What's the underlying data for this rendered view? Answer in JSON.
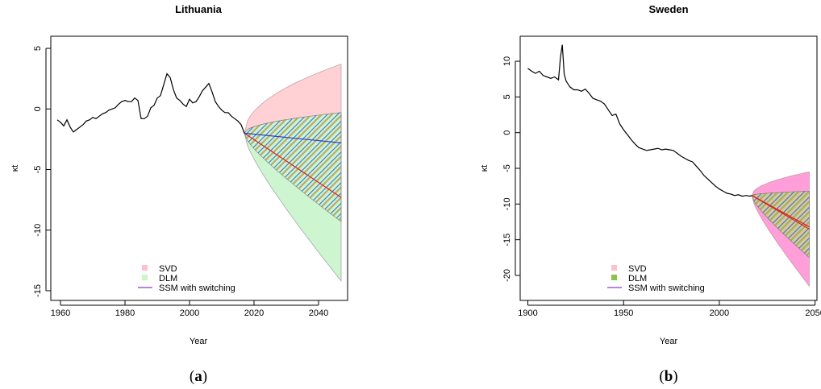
{
  "chart_data": [
    {
      "type": "line",
      "title": "Lithuania",
      "xlabel": "Year",
      "ylabel": "κt",
      "panel_label": "a",
      "xlim": [
        1957,
        2049
      ],
      "ylim": [
        -15.8,
        6.0
      ],
      "xticks": [
        1960,
        1980,
        2000,
        2020,
        2040
      ],
      "yticks": [
        5,
        0,
        -5,
        -10,
        -15
      ],
      "legend": {
        "position": "bottom",
        "entries": [
          {
            "label": "SVD",
            "color": "#ffc0cb",
            "kind": "box"
          },
          {
            "label": "DLM",
            "color": "#c8f7c8",
            "kind": "box"
          },
          {
            "label": "SSM with switching",
            "color": "#9c5fd8",
            "kind": "line"
          }
        ]
      },
      "historical": {
        "x": [
          1959,
          1960,
          1961,
          1962,
          1963,
          1964,
          1965,
          1966,
          1967,
          1968,
          1969,
          1970,
          1971,
          1972,
          1973,
          1974,
          1975,
          1976,
          1977,
          1978,
          1979,
          1980,
          1981,
          1982,
          1983,
          1984,
          1985,
          1986,
          1987,
          1988,
          1989,
          1990,
          1991,
          1992,
          1993,
          1994,
          1995,
          1996,
          1997,
          1998,
          1999,
          2000,
          2001,
          2002,
          2003,
          2004,
          2005,
          2006,
          2007,
          2008,
          2009,
          2010,
          2011,
          2012,
          2013,
          2014,
          2015,
          2016,
          2017
        ],
        "y": [
          -0.9,
          -1.1,
          -1.4,
          -0.9,
          -1.5,
          -1.9,
          -1.7,
          -1.5,
          -1.3,
          -1.0,
          -0.9,
          -0.7,
          -0.8,
          -0.6,
          -0.4,
          -0.3,
          -0.1,
          0.0,
          0.1,
          0.4,
          0.6,
          0.7,
          0.6,
          0.6,
          0.9,
          0.7,
          -0.8,
          -0.8,
          -0.6,
          0.1,
          0.3,
          0.9,
          1.1,
          2.0,
          2.9,
          2.6,
          1.6,
          0.9,
          0.7,
          0.4,
          0.2,
          0.8,
          0.5,
          0.6,
          1.0,
          1.5,
          1.8,
          2.1,
          1.4,
          0.6,
          0.2,
          -0.1,
          -0.3,
          -0.3,
          -0.6,
          -0.8,
          -1.0,
          -1.3,
          -2.0
        ]
      },
      "forecast_start": 2017,
      "forecast_end": 2047,
      "svd_band": {
        "upper": 3.7,
        "lower": -9.3
      },
      "dlm_band": {
        "upper": -0.3,
        "lower": -14.2
      },
      "dlm_central_end": -7.3,
      "ssm_central_end": -2.8,
      "forecast_start_value": -2.0
    },
    {
      "type": "line",
      "title": "Sweden",
      "xlabel": "Year",
      "ylabel": "κt",
      "panel_label": "b",
      "xlim": [
        1896,
        2051
      ],
      "ylim": [
        -23.5,
        13.5
      ],
      "xticks": [
        1900,
        1950,
        2000,
        2050
      ],
      "yticks": [
        10,
        5,
        0,
        -5,
        -10,
        -15,
        -20
      ],
      "legend": {
        "position": "bottom",
        "entries": [
          {
            "label": "SVD",
            "color": "#ffc0cb",
            "kind": "box"
          },
          {
            "label": "DLM",
            "color": "#8bc34a",
            "kind": "box"
          },
          {
            "label": "SSM with switching",
            "color": "#9c5fd8",
            "kind": "line"
          }
        ]
      },
      "historical": {
        "x": [
          1900,
          1902,
          1904,
          1906,
          1908,
          1910,
          1912,
          1914,
          1916,
          1917,
          1918,
          1919,
          1920,
          1922,
          1924,
          1926,
          1928,
          1930,
          1932,
          1934,
          1936,
          1938,
          1940,
          1942,
          1944,
          1946,
          1948,
          1950,
          1952,
          1954,
          1956,
          1958,
          1960,
          1962,
          1964,
          1966,
          1968,
          1970,
          1972,
          1974,
          1976,
          1978,
          1980,
          1982,
          1984,
          1986,
          1988,
          1990,
          1992,
          1994,
          1996,
          1998,
          2000,
          2002,
          2004,
          2006,
          2008,
          2010,
          2012,
          2014,
          2016,
          2017
        ],
        "y": [
          9.0,
          8.6,
          8.3,
          8.6,
          8.0,
          7.8,
          7.6,
          7.8,
          7.4,
          10.5,
          12.3,
          8.2,
          7.2,
          6.4,
          6.0,
          6.0,
          5.8,
          6.1,
          5.5,
          4.8,
          4.6,
          4.4,
          4.0,
          3.2,
          2.4,
          2.6,
          1.2,
          0.4,
          -0.3,
          -1.0,
          -1.6,
          -2.1,
          -2.3,
          -2.5,
          -2.4,
          -2.3,
          -2.2,
          -2.4,
          -2.3,
          -2.4,
          -2.5,
          -2.9,
          -3.3,
          -3.6,
          -3.9,
          -4.1,
          -4.7,
          -5.3,
          -6.0,
          -6.5,
          -7.0,
          -7.5,
          -7.9,
          -8.2,
          -8.5,
          -8.6,
          -8.8,
          -8.7,
          -8.9,
          -8.8,
          -8.9,
          -8.8
        ]
      },
      "forecast_start": 2017,
      "forecast_end": 2047,
      "svd_band": {
        "upper": -5.5,
        "lower": -21.5
      },
      "dlm_band": {
        "upper": -8.2,
        "lower": -17.5
      },
      "dlm_central_end": -13.5,
      "ssm_central_end": -13.2,
      "forecast_start_value": -8.8
    }
  ]
}
